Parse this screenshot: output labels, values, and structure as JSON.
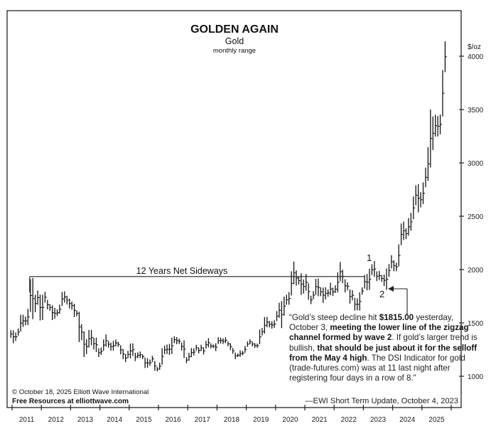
{
  "chart_data": {
    "type": "bar",
    "subtype": "ohlc-range",
    "title": "GOLDEN AGAIN",
    "subtitle": "Gold",
    "subsubtitle": "monthly range",
    "ylabel": "$/oz",
    "ylim": [
      870,
      4300
    ],
    "yticks": [
      1000,
      1500,
      2000,
      2500,
      3000,
      3500,
      4000
    ],
    "xlim": [
      2010.8,
      2025.95
    ],
    "xticks": [
      "2011",
      "2012",
      "2013",
      "2014",
      "2015",
      "2016",
      "2017",
      "2018",
      "2019",
      "2020",
      "2021",
      "2022",
      "2023",
      "2024",
      "2025"
    ],
    "grid": false,
    "start": "2010-12",
    "series": [
      {
        "name": "Gold monthly range",
        "color": "#111111",
        "ranges": [
          [
            1432,
            1360
          ],
          [
            1430,
            1310
          ],
          [
            1411,
            1330
          ],
          [
            1448,
            1380
          ],
          [
            1576,
            1420
          ],
          [
            1577,
            1462
          ],
          [
            1560,
            1478
          ],
          [
            1632,
            1480
          ],
          [
            1911,
            1603
          ],
          [
            1921,
            1535
          ],
          [
            1764,
            1600
          ],
          [
            1804,
            1670
          ],
          [
            1765,
            1523
          ],
          [
            1764,
            1527
          ],
          [
            1791,
            1690
          ],
          [
            1715,
            1627
          ],
          [
            1676,
            1613
          ],
          [
            1664,
            1527
          ],
          [
            1640,
            1540
          ],
          [
            1627,
            1564
          ],
          [
            1671,
            1586
          ],
          [
            1790,
            1660
          ],
          [
            1796,
            1690
          ],
          [
            1755,
            1672
          ],
          [
            1727,
            1636
          ],
          [
            1700,
            1625
          ],
          [
            1680,
            1555
          ],
          [
            1617,
            1562
          ],
          [
            1605,
            1321
          ],
          [
            1488,
            1338
          ],
          [
            1420,
            1180
          ],
          [
            1348,
            1208
          ],
          [
            1434,
            1270
          ],
          [
            1434,
            1290
          ],
          [
            1361,
            1251
          ],
          [
            1362,
            1227
          ],
          [
            1262,
            1180
          ],
          [
            1270,
            1200
          ],
          [
            1345,
            1240
          ],
          [
            1392,
            1277
          ],
          [
            1331,
            1268
          ],
          [
            1315,
            1240
          ],
          [
            1332,
            1240
          ],
          [
            1345,
            1280
          ],
          [
            1322,
            1275
          ],
          [
            1290,
            1206
          ],
          [
            1255,
            1160
          ],
          [
            1208,
            1132
          ],
          [
            1238,
            1170
          ],
          [
            1307,
            1167
          ],
          [
            1308,
            1190
          ],
          [
            1220,
            1142
          ],
          [
            1224,
            1170
          ],
          [
            1232,
            1170
          ],
          [
            1205,
            1162
          ],
          [
            1175,
            1077
          ],
          [
            1170,
            1080
          ],
          [
            1157,
            1098
          ],
          [
            1191,
            1135
          ],
          [
            1143,
            1052
          ],
          [
            1088,
            1046
          ],
          [
            1128,
            1061
          ],
          [
            1263,
            1108
          ],
          [
            1287,
            1208
          ],
          [
            1297,
            1208
          ],
          [
            1304,
            1200
          ],
          [
            1362,
            1208
          ],
          [
            1375,
            1310
          ],
          [
            1367,
            1300
          ],
          [
            1352,
            1302
          ],
          [
            1316,
            1241
          ],
          [
            1337,
            1171
          ],
          [
            1180,
            1123
          ],
          [
            1220,
            1146
          ],
          [
            1264,
            1180
          ],
          [
            1261,
            1194
          ],
          [
            1295,
            1240
          ],
          [
            1270,
            1214
          ],
          [
            1296,
            1236
          ],
          [
            1270,
            1204
          ],
          [
            1331,
            1260
          ],
          [
            1357,
            1271
          ],
          [
            1306,
            1260
          ],
          [
            1298,
            1265
          ],
          [
            1309,
            1236
          ],
          [
            1366,
            1302
          ],
          [
            1362,
            1307
          ],
          [
            1356,
            1303
          ],
          [
            1365,
            1310
          ],
          [
            1326,
            1281
          ],
          [
            1309,
            1246
          ],
          [
            1265,
            1211
          ],
          [
            1222,
            1160
          ],
          [
            1214,
            1180
          ],
          [
            1243,
            1182
          ],
          [
            1237,
            1196
          ],
          [
            1284,
            1221
          ],
          [
            1326,
            1276
          ],
          [
            1347,
            1300
          ],
          [
            1324,
            1280
          ],
          [
            1310,
            1266
          ],
          [
            1306,
            1266
          ],
          [
            1439,
            1300
          ],
          [
            1453,
            1382
          ],
          [
            1555,
            1400
          ],
          [
            1557,
            1459
          ],
          [
            1518,
            1458
          ],
          [
            1516,
            1446
          ],
          [
            1525,
            1454
          ],
          [
            1611,
            1517
          ],
          [
            1689,
            1548
          ],
          [
            1704,
            1451
          ],
          [
            1747,
            1568
          ],
          [
            1765,
            1670
          ],
          [
            1789,
            1670
          ],
          [
            1984,
            1757
          ],
          [
            2075,
            1863
          ],
          [
            1992,
            1849
          ],
          [
            1933,
            1860
          ],
          [
            1965,
            1764
          ],
          [
            1907,
            1775
          ],
          [
            1959,
            1802
          ],
          [
            1871,
            1717
          ],
          [
            1755,
            1676
          ],
          [
            1798,
            1723
          ],
          [
            1913,
            1765
          ],
          [
            1916,
            1750
          ],
          [
            1833,
            1750
          ],
          [
            1831,
            1688
          ],
          [
            1834,
            1721
          ],
          [
            1814,
            1746
          ],
          [
            1877,
            1759
          ],
          [
            1831,
            1753
          ],
          [
            1853,
            1780
          ],
          [
            1974,
            1786
          ],
          [
            2070,
            1890
          ],
          [
            1998,
            1872
          ],
          [
            1910,
            1787
          ],
          [
            1879,
            1805
          ],
          [
            1814,
            1681
          ],
          [
            1807,
            1711
          ],
          [
            1735,
            1615
          ],
          [
            1729,
            1618
          ],
          [
            1786,
            1616
          ],
          [
            1833,
            1765
          ],
          [
            1949,
            1822
          ],
          [
            1959,
            1805
          ],
          [
            2009,
            1809
          ],
          [
            2049,
            1949
          ],
          [
            2079,
            1932
          ],
          [
            1983,
            1893
          ],
          [
            1987,
            1902
          ],
          [
            1949,
            1884
          ],
          [
            1953,
            1846
          ],
          [
            2009,
            1810
          ],
          [
            2052,
            1931
          ],
          [
            2135,
            2010
          ],
          [
            2088,
            1985
          ],
          [
            2065,
            1984
          ],
          [
            2236,
            2030
          ],
          [
            2431,
            2228
          ],
          [
            2450,
            2277
          ],
          [
            2387,
            2286
          ],
          [
            2483,
            2318
          ],
          [
            2531,
            2364
          ],
          [
            2685,
            2471
          ],
          [
            2790,
            2603
          ],
          [
            2801,
            2536
          ],
          [
            2726,
            2583
          ],
          [
            2817,
            2614
          ],
          [
            2956,
            2772
          ],
          [
            3148,
            2833
          ],
          [
            3500,
            2957
          ],
          [
            3435,
            3120
          ],
          [
            3451,
            3247
          ],
          [
            3439,
            3248
          ],
          [
            3453,
            3268
          ],
          [
            3870,
            3436
          ],
          [
            4140,
            3850
          ]
        ]
      }
    ],
    "annotations": {
      "sideways_label": "12 Years Net Sideways",
      "sideways_level": 1921,
      "sideways_from": 2011.6,
      "sideways_to": 2023.05,
      "wave1_label": "1",
      "wave2_label": "2",
      "wave2_low": 1815.0
    }
  },
  "quote": {
    "segments": [
      {
        "t": "“Gold’s steep decline hit ",
        "b": false
      },
      {
        "t": "$1815.00",
        "b": true
      },
      {
        "t": " yesterday, October 3, ",
        "b": false
      },
      {
        "t": "meeting the lower line of the zigzag channel formed by wave 2",
        "b": true
      },
      {
        "t": ". If gold’s larger trend is bullish, ",
        "b": false
      },
      {
        "t": "that should be just about it for the selloff from the May 4 high",
        "b": true
      },
      {
        "t": ". The DSI Indicator for gold (trade-futures.com) was at 11 last night after registering four days in a row of 8.”",
        "b": false
      }
    ],
    "source": "—EWI Short Term Update, October 4, 2023"
  },
  "footer": {
    "copyright": "© October 18, 2025  Elliott Wave International",
    "resources": "Free Resources at elliottwave.com"
  }
}
